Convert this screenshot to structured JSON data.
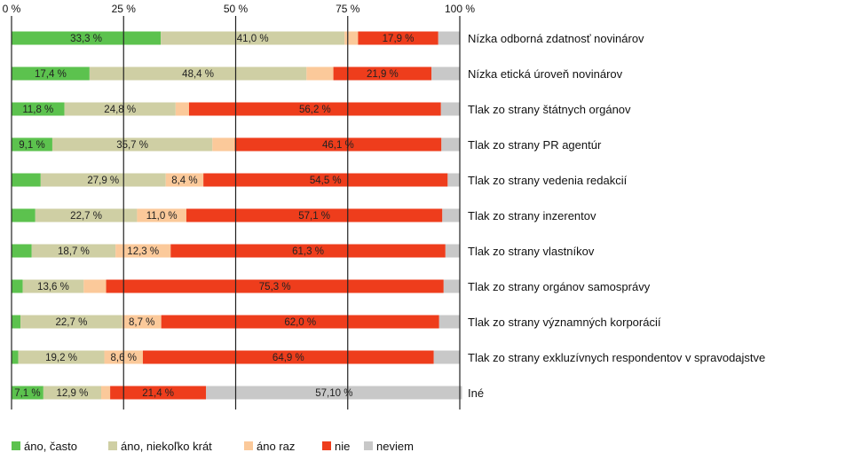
{
  "chart_data": {
    "type": "bar",
    "orientation": "horizontal",
    "stacked": true,
    "percent": true,
    "xlim": [
      0,
      100
    ],
    "x_ticks": [
      "0 %",
      "25 %",
      "50 %",
      "75 %",
      "100 %"
    ],
    "legend_position": "bottom-left",
    "categories": [
      "Nízka odborná zdatnosť novinárov",
      "Nízka etická úroveň novinárov",
      "Tlak zo strany štátnych orgánov",
      "Tlak zo strany PR agentúr",
      "Tlak zo strany vedenia redakcií",
      "Tlak zo strany inzerentov",
      "Tlak zo strany vlastníkov",
      "Tlak zo strany orgánov samosprávy",
      "Tlak zo strany významných korporácií",
      "Tlak zo strany exkluzívnych respondentov v spravodajstve",
      "Iné"
    ],
    "series": [
      {
        "name": "áno, často",
        "color": "#5cc24e",
        "values": [
          33.3,
          17.4,
          11.8,
          9.1,
          6.5,
          5.3,
          4.5,
          2.5,
          2.0,
          1.5,
          7.1
        ],
        "labels": [
          "33,3 %",
          "17,4 %",
          "11,8 %",
          "9,1 %",
          "",
          "",
          "",
          "",
          "",
          "",
          "7,1 %"
        ]
      },
      {
        "name": "áno, niekoľko krát",
        "color": "#cfcfa4",
        "values": [
          41.0,
          48.4,
          24.8,
          35.7,
          27.9,
          22.7,
          18.7,
          13.6,
          22.7,
          19.2,
          12.9
        ],
        "labels": [
          "41,0 %",
          "48,4 %",
          "24,8 %",
          "35,7 %",
          "27,9 %",
          "22,7 %",
          "18,7 %",
          "13,6 %",
          "22,7 %",
          "19,2 %",
          "12,9 %"
        ]
      },
      {
        "name": "áno raz",
        "color": "#fbc99a",
        "values": [
          3.0,
          6.0,
          3.0,
          5.0,
          8.4,
          11.0,
          12.3,
          5.0,
          8.7,
          8.6,
          2.0
        ],
        "labels": [
          "",
          "",
          "",
          "",
          "8,4 %",
          "11,0 %",
          "12,3 %",
          "",
          "8,7 %",
          "8,6 %",
          ""
        ]
      },
      {
        "name": "nie",
        "color": "#ee3d1c",
        "values": [
          17.9,
          21.9,
          56.2,
          46.1,
          54.5,
          57.1,
          61.3,
          75.3,
          62.0,
          64.9,
          21.4
        ],
        "labels": [
          "17,9 %",
          "21,9 %",
          "56,2 %",
          "46,1 %",
          "54,5 %",
          "57,1 %",
          "61,3 %",
          "75,3 %",
          "62,0 %",
          "64,9 %",
          "21,4 %"
        ]
      },
      {
        "name": "neviem",
        "color": "#c8c8c8",
        "values": [
          4.8,
          6.3,
          4.2,
          4.1,
          2.7,
          3.9,
          3.2,
          3.6,
          4.6,
          5.8,
          57.1
        ],
        "labels": [
          "",
          "",
          "",
          "",
          "",
          "",
          "",
          "",
          "",
          "",
          "57,10 %"
        ]
      }
    ]
  }
}
